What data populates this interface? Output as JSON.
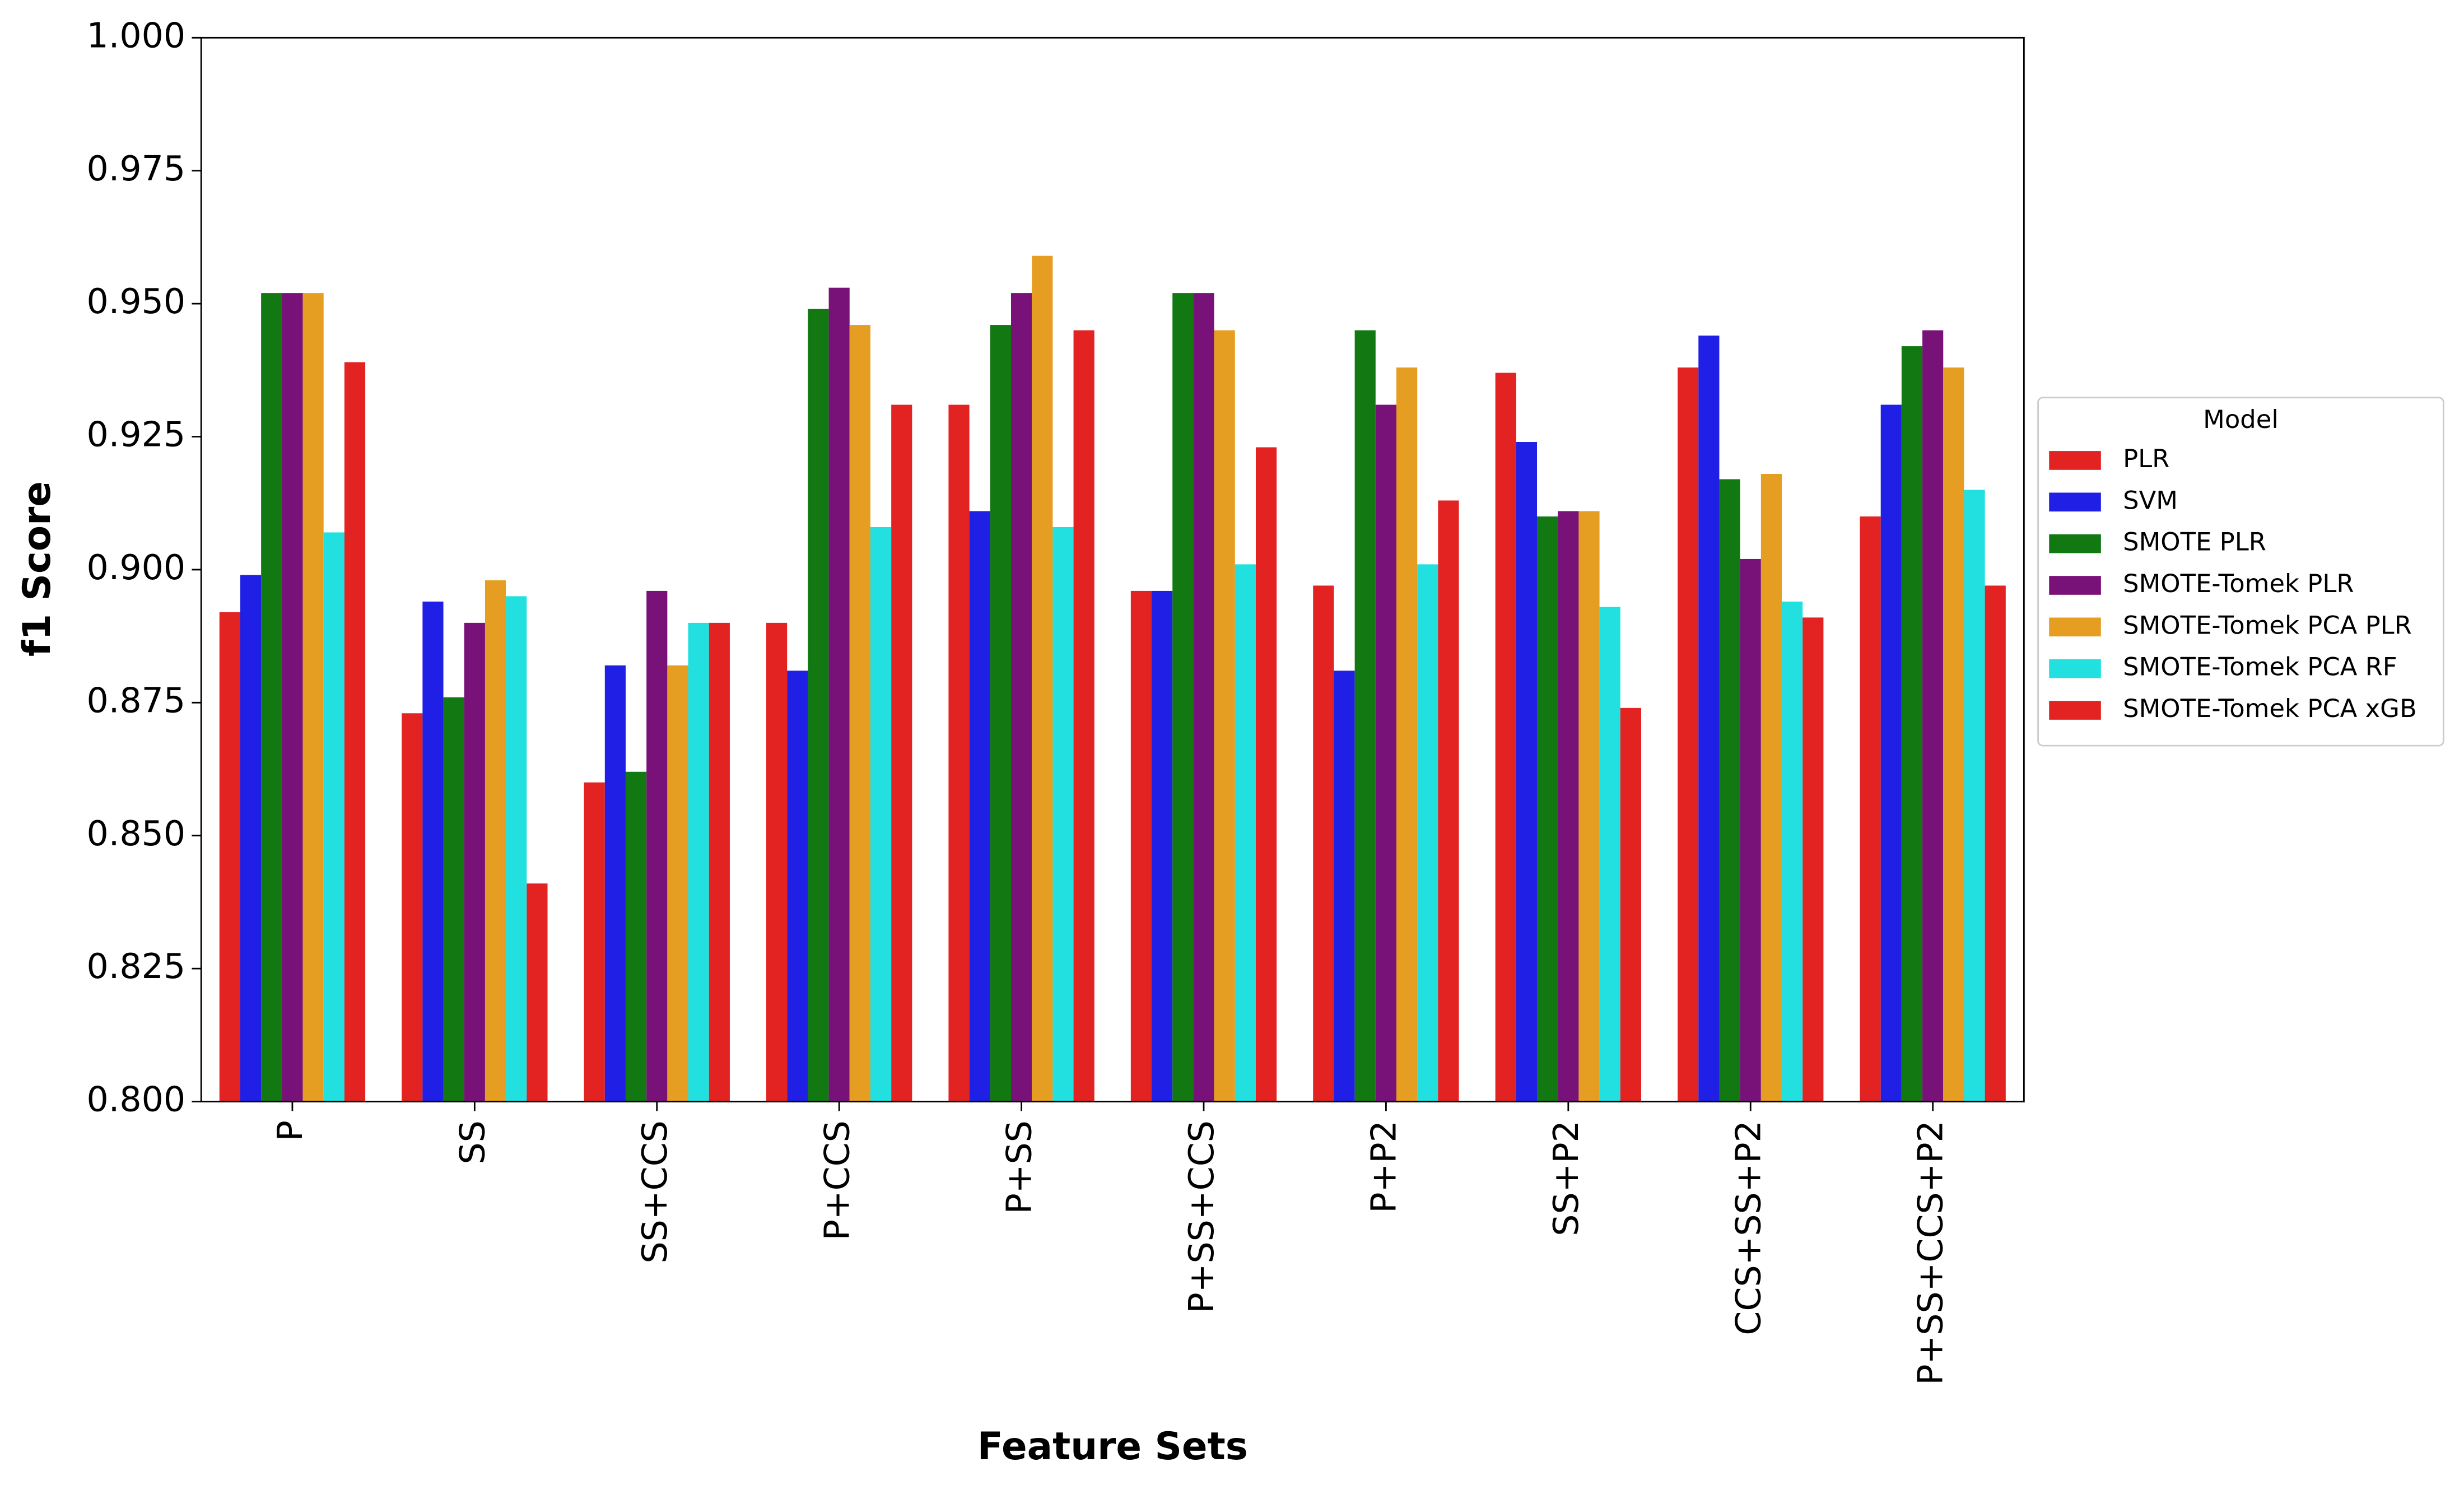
{
  "chart_data": {
    "type": "bar",
    "xlabel": "Feature Sets",
    "ylabel": "f1 Score",
    "legend_title": "Model",
    "legend": "outside right",
    "categories": [
      "P",
      "SS",
      "SS+CCS",
      "P+CCS",
      "P+SS",
      "P+SS+CCS",
      "P+P2",
      "SS+P2",
      "CCS+SS+P2",
      "P+SS+CCS+P2"
    ],
    "series": [
      {
        "name": "PLR",
        "color": "#e32222",
        "values": [
          0.892,
          0.873,
          0.86,
          0.89,
          0.931,
          0.896,
          0.897,
          0.937,
          0.938,
          0.91
        ]
      },
      {
        "name": "SVM",
        "color": "#1f1fe6",
        "values": [
          0.899,
          0.894,
          0.882,
          0.881,
          0.911,
          0.896,
          0.881,
          0.924,
          0.944,
          0.931
        ]
      },
      {
        "name": "SMOTE PLR",
        "color": "#127812",
        "values": [
          0.952,
          0.876,
          0.862,
          0.949,
          0.946,
          0.952,
          0.945,
          0.91,
          0.917,
          0.942
        ]
      },
      {
        "name": "SMOTE-Tomek PLR",
        "color": "#781278",
        "values": [
          0.952,
          0.89,
          0.896,
          0.953,
          0.952,
          0.952,
          0.931,
          0.911,
          0.902,
          0.945
        ]
      },
      {
        "name": "SMOTE-Tomek PCA PLR",
        "color": "#e69e22",
        "values": [
          0.952,
          0.898,
          0.882,
          0.946,
          0.959,
          0.945,
          0.938,
          0.911,
          0.918,
          0.938
        ]
      },
      {
        "name": "SMOTE-Tomek PCA RF",
        "color": "#22e0e0",
        "values": [
          0.907,
          0.895,
          0.89,
          0.908,
          0.908,
          0.901,
          0.901,
          0.893,
          0.894,
          0.915
        ]
      },
      {
        "name": "SMOTE-Tomek PCA xGB",
        "color": "#e32222",
        "values": [
          0.939,
          0.841,
          0.89,
          0.931,
          0.945,
          0.923,
          0.913,
          0.874,
          0.891,
          0.897
        ]
      }
    ],
    "ylim": [
      0.8,
      1.0
    ],
    "yticks": [
      {
        "value": 0.8,
        "label": "0.800"
      },
      {
        "value": 0.825,
        "label": "0.825"
      },
      {
        "value": 0.85,
        "label": "0.850"
      },
      {
        "value": 0.875,
        "label": "0.875"
      },
      {
        "value": 0.9,
        "label": "0.900"
      },
      {
        "value": 0.925,
        "label": "0.925"
      },
      {
        "value": 0.95,
        "label": "0.950"
      },
      {
        "value": 0.975,
        "label": "0.975"
      },
      {
        "value": 1.0,
        "label": "1.000"
      }
    ]
  }
}
